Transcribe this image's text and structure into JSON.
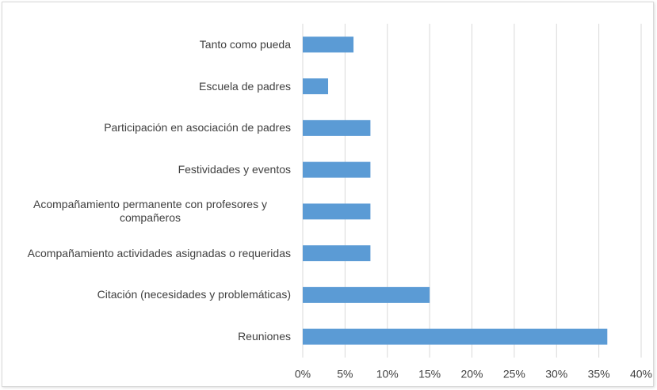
{
  "chart_data": {
    "type": "bar",
    "orientation": "horizontal",
    "categories": [
      "Tanto como pueda",
      "Escuela de padres",
      "Participación en asociación de padres",
      "Festividades y eventos",
      "Acompañamiento permanente con profesores y compañeros",
      "Acompañamiento actividades asignadas o requeridas",
      "Citación (necesidades y problemáticas)",
      "Reuniones"
    ],
    "values": [
      6,
      3,
      8,
      8,
      8,
      8,
      15,
      36
    ],
    "color": "#5b9bd5",
    "xlim": [
      0,
      40
    ],
    "xticks": [
      {
        "value": 0,
        "label": "0%"
      },
      {
        "value": 5,
        "label": "5%"
      },
      {
        "value": 10,
        "label": "10%"
      },
      {
        "value": 15,
        "label": "15%"
      },
      {
        "value": 20,
        "label": "20%"
      },
      {
        "value": 25,
        "label": "25%"
      },
      {
        "value": 30,
        "label": "30%"
      },
      {
        "value": 35,
        "label": "35%"
      },
      {
        "value": 40,
        "label": "40%"
      }
    ],
    "grid": true
  }
}
